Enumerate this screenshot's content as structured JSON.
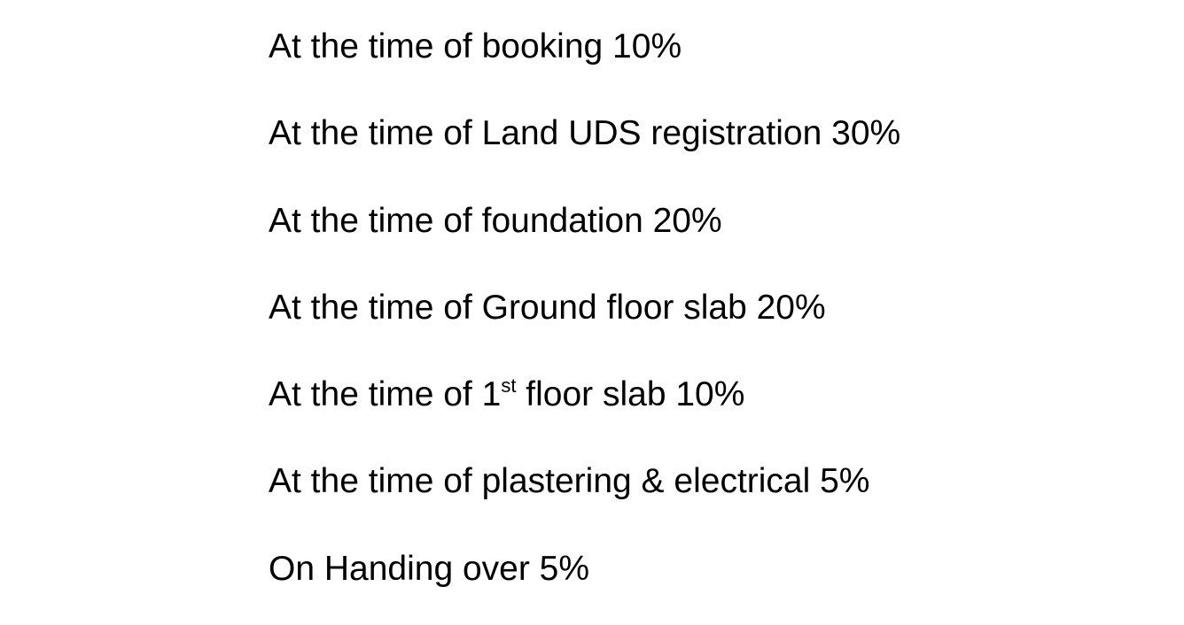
{
  "payment_schedule": [
    {
      "text": "At the time of booking 10%"
    },
    {
      "text": "At the time of Land UDS registration 30%"
    },
    {
      "text": "At the time of foundation 20%"
    },
    {
      "text": "At the time of Ground floor slab 20%"
    },
    {
      "pre": "At the time of 1",
      "sup": "st",
      "post": " floor slab 10%"
    },
    {
      "text": "At the time of plastering & electrical 5%"
    },
    {
      "text": "On Handing over 5%"
    }
  ]
}
